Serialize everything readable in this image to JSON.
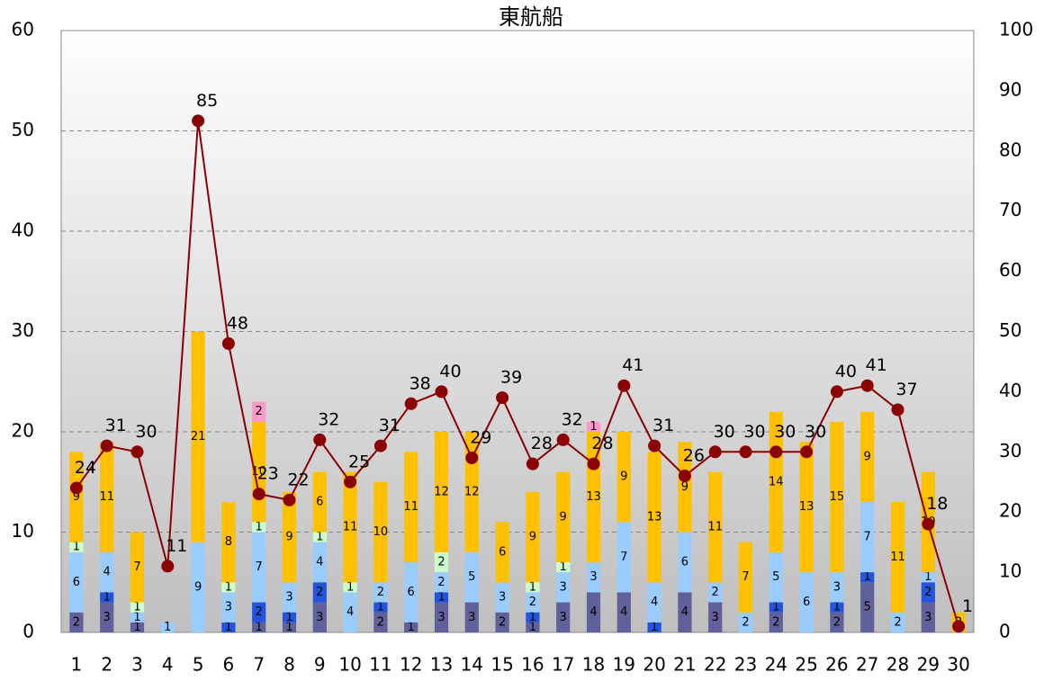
{
  "chart_data": {
    "type": "bar",
    "title": "東航船",
    "categories": [
      "1",
      "2",
      "3",
      "4",
      "5",
      "6",
      "7",
      "8",
      "9",
      "10",
      "11",
      "12",
      "13",
      "14",
      "15",
      "16",
      "17",
      "18",
      "19",
      "20",
      "21",
      "22",
      "23",
      "24",
      "25",
      "26",
      "27",
      "28",
      "29",
      "30"
    ],
    "series": [
      {
        "color": "#60609a",
        "values": [
          2,
          3,
          1,
          null,
          null,
          null,
          1,
          1,
          3,
          null,
          2,
          1,
          3,
          3,
          2,
          1,
          3,
          4,
          4,
          null,
          4,
          3,
          null,
          2,
          null,
          2,
          5,
          null,
          3,
          null
        ]
      },
      {
        "color": "#2255dd",
        "values": [
          null,
          1,
          null,
          null,
          null,
          1,
          2,
          1,
          2,
          null,
          1,
          null,
          1,
          null,
          null,
          1,
          null,
          null,
          null,
          1,
          null,
          null,
          null,
          1,
          null,
          1,
          1,
          null,
          2,
          null
        ]
      },
      {
        "color": "#99ccff",
        "values": [
          6,
          4,
          1,
          1,
          9,
          3,
          7,
          3,
          4,
          4,
          2,
          6,
          2,
          5,
          3,
          2,
          3,
          3,
          7,
          4,
          6,
          2,
          2,
          5,
          6,
          3,
          7,
          2,
          1,
          null
        ]
      },
      {
        "color": "#ccffcc",
        "values": [
          1,
          null,
          1,
          null,
          null,
          1,
          1,
          null,
          1,
          1,
          null,
          null,
          2,
          null,
          null,
          1,
          1,
          null,
          null,
          null,
          null,
          null,
          null,
          null,
          null,
          null,
          null,
          null,
          null,
          null
        ]
      },
      {
        "color": "#ffc000",
        "values": [
          9,
          11,
          7,
          null,
          21,
          8,
          10,
          9,
          6,
          11,
          10,
          11,
          12,
          12,
          6,
          9,
          9,
          13,
          9,
          13,
          9,
          11,
          7,
          14,
          13,
          15,
          9,
          11,
          10,
          2
        ]
      },
      {
        "color": "#ff99cc",
        "values": [
          null,
          null,
          null,
          null,
          null,
          null,
          2,
          null,
          null,
          null,
          null,
          null,
          null,
          null,
          null,
          null,
          null,
          1,
          null,
          null,
          null,
          null,
          null,
          null,
          null,
          null,
          null,
          null,
          null,
          null
        ]
      },
      {
        "type": "line",
        "axis": "y2",
        "color": "#8b0000",
        "values": [
          24,
          31,
          30,
          11,
          85,
          48,
          23,
          22,
          32,
          25,
          31,
          38,
          40,
          29,
          39,
          28,
          32,
          28,
          41,
          31,
          26,
          30,
          30,
          30,
          30,
          40,
          41,
          37,
          18,
          1
        ]
      }
    ],
    "ylim": [
      0,
      60
    ],
    "yticks": [
      0,
      10,
      20,
      30,
      40,
      50,
      60
    ],
    "y2lim": [
      0,
      100
    ],
    "y2ticks": [
      0,
      10,
      20,
      30,
      40,
      50,
      60,
      70,
      80,
      90,
      100
    ],
    "grid": true
  }
}
